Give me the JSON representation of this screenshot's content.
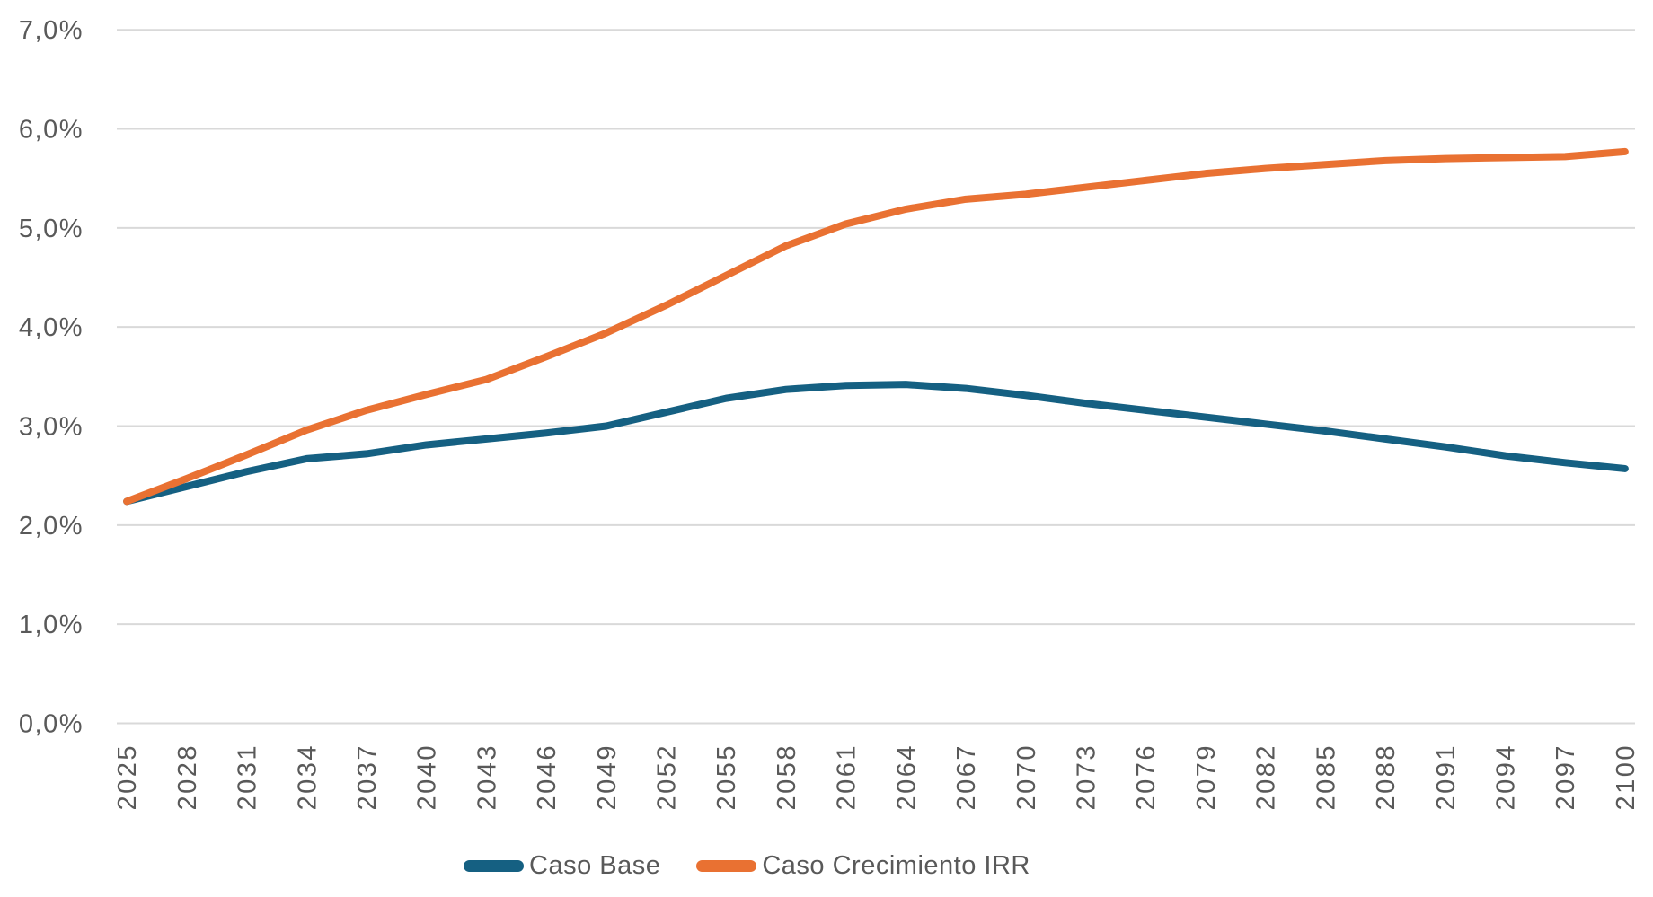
{
  "chart_data": {
    "type": "line",
    "title": "",
    "xlabel": "",
    "ylabel": "",
    "categories": [
      2025,
      2028,
      2031,
      2034,
      2037,
      2040,
      2043,
      2046,
      2049,
      2052,
      2055,
      2058,
      2061,
      2064,
      2067,
      2070,
      2073,
      2076,
      2079,
      2082,
      2085,
      2088,
      2091,
      2094,
      2097,
      2100
    ],
    "series": [
      {
        "name": "Caso Base",
        "color": "#156082",
        "values": [
          2.24,
          2.39,
          2.54,
          2.67,
          2.72,
          2.81,
          2.87,
          2.93,
          3.0,
          3.14,
          3.28,
          3.37,
          3.41,
          3.42,
          3.38,
          3.31,
          3.23,
          3.16,
          3.09,
          3.02,
          2.95,
          2.87,
          2.79,
          2.7,
          2.63,
          2.57
        ]
      },
      {
        "name": "Caso Crecimiento IRR",
        "color": "#E97132",
        "values": [
          2.24,
          2.47,
          2.71,
          2.96,
          3.16,
          3.32,
          3.47,
          3.7,
          3.94,
          4.22,
          4.52,
          4.82,
          5.04,
          5.19,
          5.29,
          5.34,
          5.41,
          5.48,
          5.55,
          5.6,
          5.64,
          5.68,
          5.7,
          5.71,
          5.72,
          5.77
        ]
      }
    ],
    "y_ticks": [
      "0,0%",
      "1,0%",
      "2,0%",
      "3,0%",
      "4,0%",
      "5,0%",
      "6,0%",
      "7,0%"
    ],
    "ylim": [
      0,
      7
    ],
    "y_tick_step": 1,
    "x_axis": {
      "start_year": 2025,
      "end_year": 2100,
      "tick_interval_years": 3,
      "label_rotation_deg": -90
    },
    "grid": "horizontal",
    "gridline_color": "#D9D9D9",
    "label_color": "#595959",
    "background": "#FFFFFF",
    "legend_position": "bottom",
    "line_width": 8
  }
}
